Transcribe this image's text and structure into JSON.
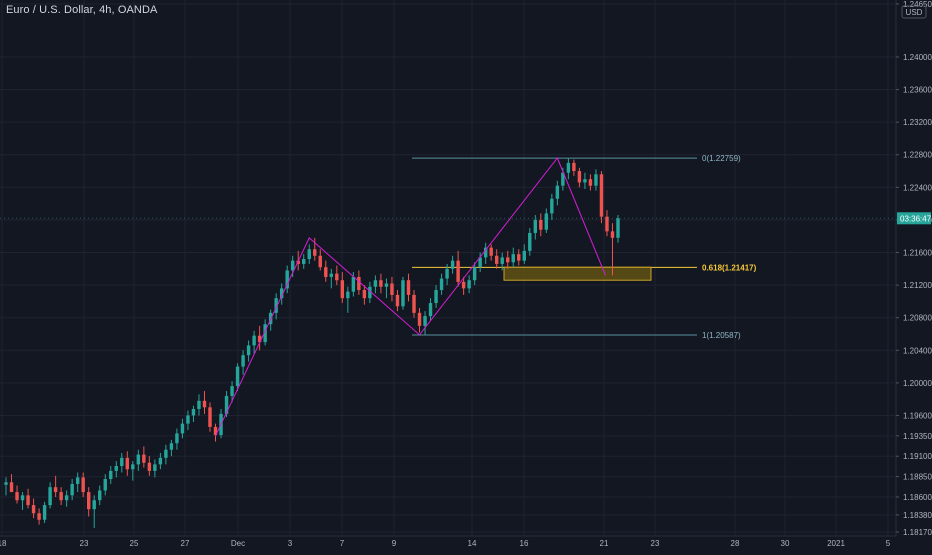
{
  "title": "Euro / U.S. Dollar, 4h, OANDA",
  "colors": {
    "background": "#131722",
    "up": "#26a69a",
    "down": "#ef5350",
    "grid": "#1f2330",
    "axis_text": "#b2b5be",
    "pattern": "#d51ed5",
    "fib_level": "#5a8fa0",
    "fib_golden": "#f7c936",
    "zone_fill": "#6b5a10",
    "zone_border": "#c9a227",
    "price_tag": "#26a69a"
  },
  "chart_data": {
    "type": "candlestick",
    "symbol": "EURUSD",
    "timeframe": "4h",
    "ylim": [
      1.1817,
      1.2465
    ],
    "currency": "USD",
    "y_ticks": [
      "1.24650",
      "1.24000",
      "1.23600",
      "1.23200",
      "1.22800",
      "1.22400",
      "1.22000",
      "1.21600",
      "1.21200",
      "1.20800",
      "1.20400",
      "1.20000",
      "1.19600",
      "1.19350",
      "1.19100",
      "1.18850",
      "1.18600",
      "1.18380",
      "1.18170"
    ],
    "x_ticks": [
      "18",
      "23",
      "25",
      "27",
      "Dec",
      "3",
      "7",
      "9",
      "14",
      "16",
      "21",
      "23",
      "28",
      "30",
      "2021",
      "5"
    ],
    "current_price_label": "03:36:47",
    "swing_points": [
      {
        "label": "start",
        "price": 1.1935
      },
      {
        "label": "high",
        "price": 1.2178
      },
      {
        "label": "low",
        "price": 1.2059
      },
      {
        "label": "high",
        "price": 1.2276
      },
      {
        "label": "low",
        "price": 1.2132
      }
    ],
    "fibonacci": [
      {
        "level": "0",
        "price": 1.22759,
        "label": "0(1.22759)"
      },
      {
        "level": "0.618",
        "price": 1.21417,
        "label": "0.618(1.21417)"
      },
      {
        "level": "1",
        "price": 1.20587,
        "label": "1(1.20587)"
      }
    ],
    "zone": {
      "top": 1.2142,
      "bottom": 1.2126
    },
    "candles": [
      [
        1.1875,
        1.1884,
        1.1862,
        1.1878
      ],
      [
        1.1878,
        1.1888,
        1.1868,
        1.1866
      ],
      [
        1.1866,
        1.1874,
        1.1852,
        1.1856
      ],
      [
        1.1856,
        1.1866,
        1.1844,
        1.1862
      ],
      [
        1.1862,
        1.187,
        1.1846,
        1.185
      ],
      [
        1.185,
        1.1858,
        1.1834,
        1.184
      ],
      [
        1.184,
        1.1846,
        1.1826,
        1.1832
      ],
      [
        1.1832,
        1.1854,
        1.1828,
        1.185
      ],
      [
        1.185,
        1.1878,
        1.1846,
        1.1872
      ],
      [
        1.1872,
        1.1886,
        1.186,
        1.1866
      ],
      [
        1.1866,
        1.1872,
        1.185,
        1.1856
      ],
      [
        1.1856,
        1.1868,
        1.1848,
        1.1862
      ],
      [
        1.1862,
        1.1882,
        1.1856,
        1.1876
      ],
      [
        1.1876,
        1.189,
        1.1866,
        1.1884
      ],
      [
        1.1884,
        1.189,
        1.186,
        1.1866
      ],
      [
        1.1866,
        1.1872,
        1.1836,
        1.1845
      ],
      [
        1.1845,
        1.1862,
        1.1822,
        1.1856
      ],
      [
        1.1856,
        1.1874,
        1.185,
        1.1868
      ],
      [
        1.1868,
        1.1888,
        1.1862,
        1.1882
      ],
      [
        1.1882,
        1.1898,
        1.1876,
        1.1892
      ],
      [
        1.1892,
        1.1904,
        1.1884,
        1.1898
      ],
      [
        1.1898,
        1.1914,
        1.189,
        1.1908
      ],
      [
        1.1908,
        1.1916,
        1.1886,
        1.1894
      ],
      [
        1.1894,
        1.1904,
        1.188,
        1.19
      ],
      [
        1.19,
        1.1918,
        1.1892,
        1.1912
      ],
      [
        1.1912,
        1.1922,
        1.1896,
        1.1902
      ],
      [
        1.1902,
        1.191,
        1.1886,
        1.1892
      ],
      [
        1.1892,
        1.1906,
        1.1884,
        1.19
      ],
      [
        1.19,
        1.1914,
        1.1894,
        1.1908
      ],
      [
        1.1908,
        1.1924,
        1.19,
        1.1918
      ],
      [
        1.1918,
        1.193,
        1.191,
        1.1926
      ],
      [
        1.1926,
        1.1944,
        1.1918,
        1.1938
      ],
      [
        1.1938,
        1.1956,
        1.1932,
        1.195
      ],
      [
        1.195,
        1.1966,
        1.1942,
        1.196
      ],
      [
        1.196,
        1.1972,
        1.1952,
        1.1968
      ],
      [
        1.1968,
        1.1986,
        1.196,
        1.1978
      ],
      [
        1.1978,
        1.199,
        1.1962,
        1.197
      ],
      [
        1.197,
        1.1976,
        1.194,
        1.1946
      ],
      [
        1.1946,
        1.195,
        1.1928,
        1.1936
      ],
      [
        1.1936,
        1.1968,
        1.1932,
        1.1962
      ],
      [
        1.1962,
        1.199,
        1.1958,
        1.1984
      ],
      [
        1.1984,
        1.2002,
        1.1976,
        1.1996
      ],
      [
        1.1996,
        1.2024,
        1.199,
        1.202
      ],
      [
        1.202,
        1.204,
        1.201,
        1.2034
      ],
      [
        1.2034,
        1.2052,
        1.2026,
        1.2046
      ],
      [
        1.2046,
        1.2064,
        1.2036,
        1.2058
      ],
      [
        1.2058,
        1.207,
        1.204,
        1.205
      ],
      [
        1.205,
        1.2078,
        1.2046,
        1.2072
      ],
      [
        1.2072,
        1.209,
        1.2064,
        1.2086
      ],
      [
        1.2086,
        1.211,
        1.2078,
        1.2104
      ],
      [
        1.2104,
        1.2122,
        1.2096,
        1.2116
      ],
      [
        1.2116,
        1.2144,
        1.211,
        1.2138
      ],
      [
        1.2138,
        1.2156,
        1.213,
        1.215
      ],
      [
        1.215,
        1.2162,
        1.2138,
        1.2146
      ],
      [
        1.2146,
        1.2158,
        1.214,
        1.2152
      ],
      [
        1.2152,
        1.217,
        1.2146,
        1.2164
      ],
      [
        1.2164,
        1.2178,
        1.215,
        1.2156
      ],
      [
        1.2156,
        1.2164,
        1.2138,
        1.2142
      ],
      [
        1.2142,
        1.215,
        1.2124,
        1.213
      ],
      [
        1.213,
        1.214,
        1.2116,
        1.2134
      ],
      [
        1.2134,
        1.2144,
        1.212,
        1.2126
      ],
      [
        1.2126,
        1.2136,
        1.2098,
        1.2104
      ],
      [
        1.2104,
        1.2118,
        1.2086,
        1.2112
      ],
      [
        1.2112,
        1.2136,
        1.2106,
        1.213
      ],
      [
        1.213,
        1.2138,
        1.2108,
        1.2114
      ],
      [
        1.2114,
        1.212,
        1.2096,
        1.2104
      ],
      [
        1.2104,
        1.2124,
        1.2098,
        1.2118
      ],
      [
        1.2118,
        1.2132,
        1.211,
        1.2126
      ],
      [
        1.2126,
        1.2134,
        1.211,
        1.2118
      ],
      [
        1.2118,
        1.2128,
        1.2104,
        1.2122
      ],
      [
        1.2122,
        1.213,
        1.21,
        1.2108
      ],
      [
        1.2108,
        1.2114,
        1.2088,
        1.2094
      ],
      [
        1.2094,
        1.213,
        1.209,
        1.2126
      ],
      [
        1.2126,
        1.2134,
        1.21,
        1.2108
      ],
      [
        1.2108,
        1.2114,
        1.208,
        1.2086
      ],
      [
        1.2086,
        1.2092,
        1.2062,
        1.207
      ],
      [
        1.207,
        1.2088,
        1.2059,
        1.2082
      ],
      [
        1.2082,
        1.2104,
        1.2076,
        1.2098
      ],
      [
        1.2098,
        1.212,
        1.2092,
        1.2114
      ],
      [
        1.2114,
        1.2134,
        1.2108,
        1.2128
      ],
      [
        1.2128,
        1.2146,
        1.212,
        1.214
      ],
      [
        1.214,
        1.2156,
        1.2134,
        1.215
      ],
      [
        1.215,
        1.2162,
        1.2118,
        1.2124
      ],
      [
        1.2124,
        1.213,
        1.2108,
        1.2116
      ],
      [
        1.2116,
        1.2132,
        1.211,
        1.2126
      ],
      [
        1.2126,
        1.2148,
        1.212,
        1.2142
      ],
      [
        1.2142,
        1.216,
        1.2136,
        1.2154
      ],
      [
        1.2154,
        1.2172,
        1.2146,
        1.2166
      ],
      [
        1.2166,
        1.217,
        1.215,
        1.2156
      ],
      [
        1.2156,
        1.2164,
        1.214,
        1.2146
      ],
      [
        1.2146,
        1.216,
        1.2138,
        1.2154
      ],
      [
        1.2154,
        1.2162,
        1.214,
        1.2148
      ],
      [
        1.2148,
        1.2166,
        1.2142,
        1.2158
      ],
      [
        1.2158,
        1.2164,
        1.2144,
        1.215
      ],
      [
        1.215,
        1.217,
        1.2146,
        1.2162
      ],
      [
        1.2162,
        1.219,
        1.2156,
        1.2184
      ],
      [
        1.2184,
        1.2206,
        1.2176,
        1.22
      ],
      [
        1.22,
        1.2208,
        1.218,
        1.2188
      ],
      [
        1.2188,
        1.2214,
        1.2184,
        1.2208
      ],
      [
        1.2208,
        1.2232,
        1.22,
        1.2226
      ],
      [
        1.2226,
        1.2248,
        1.2218,
        1.2242
      ],
      [
        1.2242,
        1.2264,
        1.2236,
        1.2258
      ],
      [
        1.2258,
        1.2276,
        1.225,
        1.227
      ],
      [
        1.227,
        1.2274,
        1.2254,
        1.226
      ],
      [
        1.226,
        1.2264,
        1.224,
        1.2246
      ],
      [
        1.2246,
        1.2258,
        1.2238,
        1.225
      ],
      [
        1.225,
        1.2256,
        1.2236,
        1.2242
      ],
      [
        1.2242,
        1.2262,
        1.2236,
        1.2256
      ],
      [
        1.2256,
        1.226,
        1.2196,
        1.2204
      ],
      [
        1.2204,
        1.2212,
        1.218,
        1.2186
      ],
      [
        1.2186,
        1.2196,
        1.2132,
        1.2178
      ],
      [
        1.2178,
        1.2206,
        1.2172,
        1.2202
      ]
    ]
  }
}
